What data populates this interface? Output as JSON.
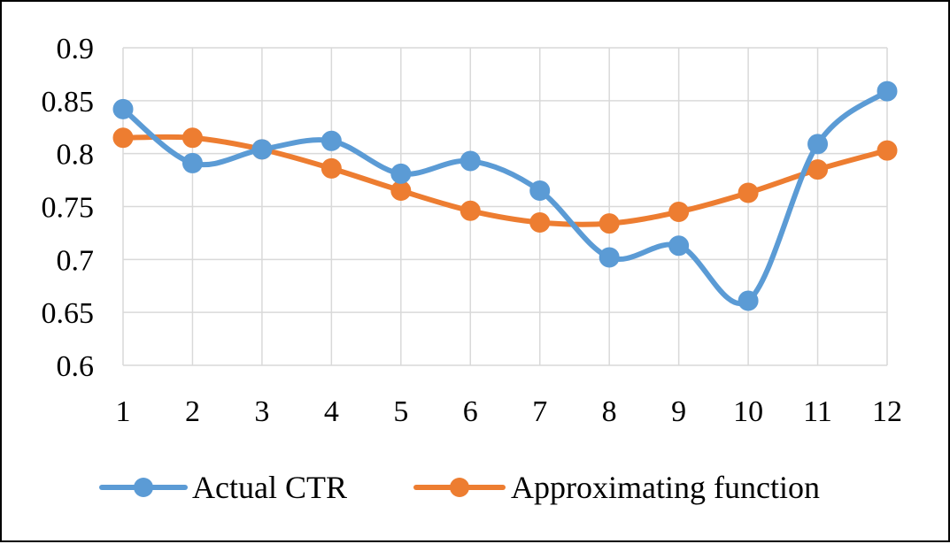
{
  "chart_data": {
    "type": "line",
    "title": "",
    "xlabel": "",
    "ylabel": "",
    "categories": [
      "1",
      "2",
      "3",
      "4",
      "5",
      "6",
      "7",
      "8",
      "9",
      "10",
      "11",
      "12"
    ],
    "ylim": [
      0.6,
      0.9
    ],
    "yticks": [
      "0.6",
      "0.65",
      "0.7",
      "0.75",
      "0.8",
      "0.85",
      "0.9"
    ],
    "grid": true,
    "smooth": true,
    "legend_position": "bottom",
    "series": [
      {
        "name": "Actual CTR",
        "color": "#5B9BD5",
        "values": [
          0.842,
          0.791,
          0.804,
          0.812,
          0.781,
          0.793,
          0.765,
          0.702,
          0.713,
          0.661,
          0.809,
          0.859
        ]
      },
      {
        "name": "Approximating function",
        "color": "#ED7D31",
        "values": [
          0.815,
          0.815,
          0.804,
          0.786,
          0.765,
          0.746,
          0.735,
          0.734,
          0.745,
          0.763,
          0.785,
          0.803
        ]
      }
    ]
  }
}
